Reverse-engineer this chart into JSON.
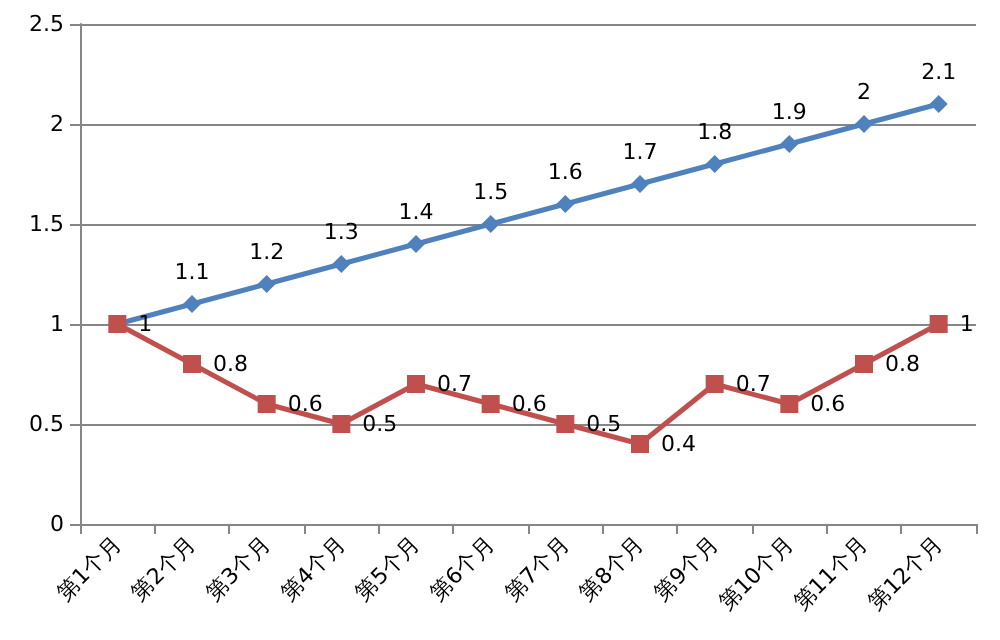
{
  "chart_data": {
    "type": "line",
    "categories": [
      "第1个月",
      "第2个月",
      "第3个月",
      "第4个月",
      "第5个月",
      "第6个月",
      "第7个月",
      "第8个月",
      "第9个月",
      "第10个月",
      "第11个月",
      "第12个月"
    ],
    "series": [
      {
        "color": "#4f81bd",
        "marker": "diamond",
        "values": [
          1,
          1.1,
          1.2,
          1.3,
          1.4,
          1.5,
          1.6,
          1.7,
          1.8,
          1.9,
          2,
          2.1
        ],
        "value_labels": [
          null,
          "1.1",
          "1.2",
          "1.3",
          "1.4",
          "1.5",
          "1.6",
          "1.7",
          "1.8",
          "1.9",
          "2",
          "2.1"
        ]
      },
      {
        "color": "#c0504d",
        "marker": "square",
        "values": [
          1,
          0.8,
          0.6,
          0.5,
          0.7,
          0.6,
          0.5,
          0.4,
          0.7,
          0.6,
          0.8,
          1
        ],
        "value_labels": [
          "1",
          "0.8",
          "0.6",
          "0.5",
          "0.7",
          "0.6",
          "0.5",
          "0.4",
          "0.7",
          "0.6",
          "0.8",
          "1"
        ]
      }
    ],
    "ylim": [
      0,
      2.5
    ],
    "yticks": [
      0,
      0.5,
      1,
      1.5,
      2,
      2.5
    ],
    "grid": "y",
    "line_style": "solid"
  }
}
